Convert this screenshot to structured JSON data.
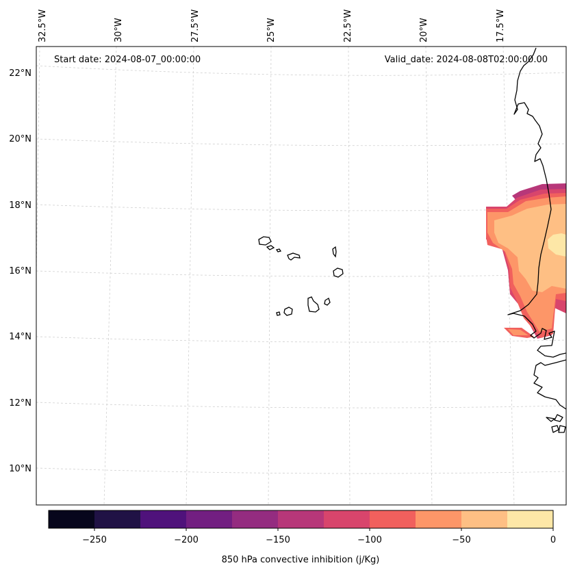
{
  "map": {
    "start_label": "Start date: 2024-08-07_00:00:00",
    "valid_label": "Valid_date: 2024-08-08T02:00:00.00",
    "lon_labels": [
      "32.5°W",
      "30°W",
      "27.5°W",
      "25°W",
      "22.5°W",
      "20°W",
      "17.5°W"
    ],
    "lat_labels": [
      "22°N",
      "20°N",
      "18°N",
      "16°N",
      "14°N",
      "12°N",
      "10°N"
    ],
    "variable": "850 hPa convective inhibition (j/Kg)"
  },
  "colorbar": {
    "label": "850 hPa convective inhibition (j/Kg)",
    "ticks": [
      "−250",
      "−200",
      "−150",
      "−100",
      "−50",
      "0"
    ],
    "levels": [
      -275,
      -250,
      -225,
      -200,
      -175,
      -150,
      -125,
      -100,
      -75,
      -50,
      -25,
      0
    ],
    "colors": [
      "#07061c",
      "#201245",
      "#4f127b",
      "#721f81",
      "#942c80",
      "#b73779",
      "#d8456c",
      "#f1605d",
      "#fd9668",
      "#febf84",
      "#fde7a7"
    ]
  },
  "colors": {
    "frame": "#000000",
    "grid": "#cfcfcf",
    "coast": "#000000"
  }
}
